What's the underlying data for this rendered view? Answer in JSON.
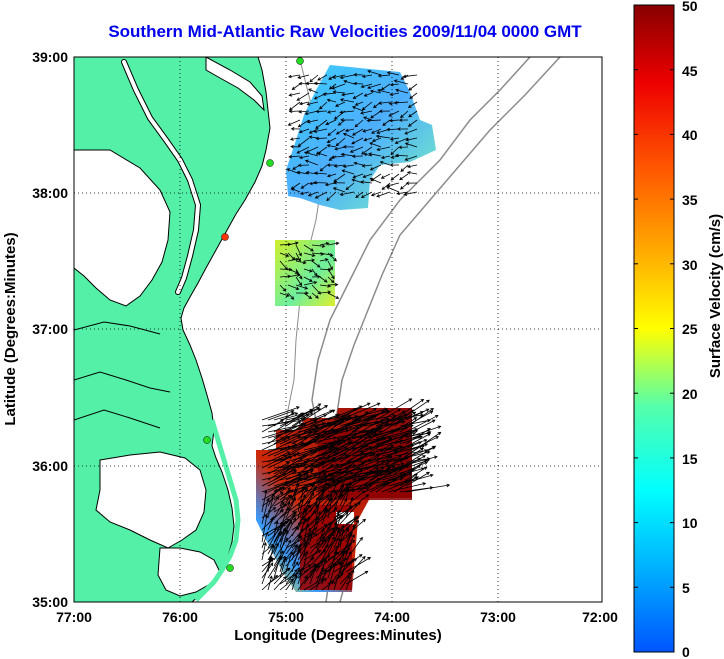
{
  "title": "Southern Mid-Atlantic Raw Velocities 2009/11/04 0000 GMT",
  "axes": {
    "xlabel": "Longitude (Degrees:Minutes)",
    "ylabel": "Latitude (Degrees:Minutes)",
    "x_ticks": [
      "77:00",
      "76:00",
      "75:00",
      "74:00",
      "73:00",
      "72:00"
    ],
    "y_ticks": [
      "39:00",
      "38:00",
      "37:00",
      "36:00",
      "35:00"
    ],
    "xlim": [
      -77,
      -72
    ],
    "ylim": [
      35,
      39
    ],
    "grid": "dotted"
  },
  "colorbar": {
    "label": "Surface Velocity (cm/s)",
    "ticks": [
      "50",
      "45",
      "40",
      "35",
      "30",
      "25",
      "20",
      "15",
      "10",
      "5",
      "0"
    ],
    "range": [
      0,
      50
    ],
    "colormap": "jet"
  },
  "colors": {
    "land": "#55f0a8",
    "water": "#ffffff",
    "coastline": "#000000",
    "bathymetry": "#8c8c8c",
    "title": "#0000ee",
    "station_green": "#22dd22",
    "station_red": "#ff3300"
  },
  "chart_data": {
    "type": "heatmap",
    "description_units": "surface current speed in cm/s with velocity vectors",
    "regions": [
      {
        "lon_range": [
          -75.0,
          -73.7
        ],
        "lat_range": [
          37.95,
          38.95
        ],
        "speed_range_cm_s": [
          5,
          20
        ]
      },
      {
        "lon_range": [
          -75.12,
          -74.45
        ],
        "lat_range": [
          37.2,
          37.65
        ],
        "speed_range_cm_s": [
          15,
          25
        ]
      },
      {
        "lon_range": [
          -75.3,
          -73.85
        ],
        "lat_range": [
          35.1,
          36.75
        ],
        "speed_range_cm_s": [
          5,
          50
        ]
      }
    ],
    "stations": [
      {
        "lon": -74.95,
        "lat": 39.0,
        "color": "green"
      },
      {
        "lon": -75.15,
        "lat": 38.22,
        "color": "green"
      },
      {
        "lon": -75.57,
        "lat": 37.68,
        "color": "red"
      },
      {
        "lon": -75.72,
        "lat": 36.18,
        "color": "green"
      },
      {
        "lon": -75.52,
        "lat": 35.25,
        "color": "green"
      }
    ]
  }
}
